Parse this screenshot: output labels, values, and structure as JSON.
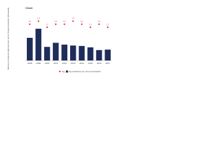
{
  "chart_data": {
    "type": "bar",
    "title": "Chart",
    "y_label": "Mercury emissions (g/tonne) per unit of metal production (thousand)",
    "categories": [
      "2008",
      "2009",
      "2010",
      "2011",
      "2012",
      "2013",
      "2014",
      "2015",
      "2016",
      "2017"
    ],
    "ylim": [
      0,
      100
    ],
    "y2lim": [
      0,
      1.5
    ],
    "series": [
      {
        "name": "Hg emissions per unit of production",
        "color": "#1f2d5a",
        "type": "bar",
        "values": [
          50,
          70,
          30,
          39,
          35,
          33,
          32,
          29,
          23,
          24
        ]
      },
      {
        "name": "Hg",
        "color": "#d9223a",
        "type": "scatter",
        "axis": "y2",
        "values": [
          1.2,
          1.3,
          1.1,
          1.2,
          1.2,
          1.3,
          1.2,
          1.1,
          1.2,
          1.1
        ]
      }
    ]
  }
}
